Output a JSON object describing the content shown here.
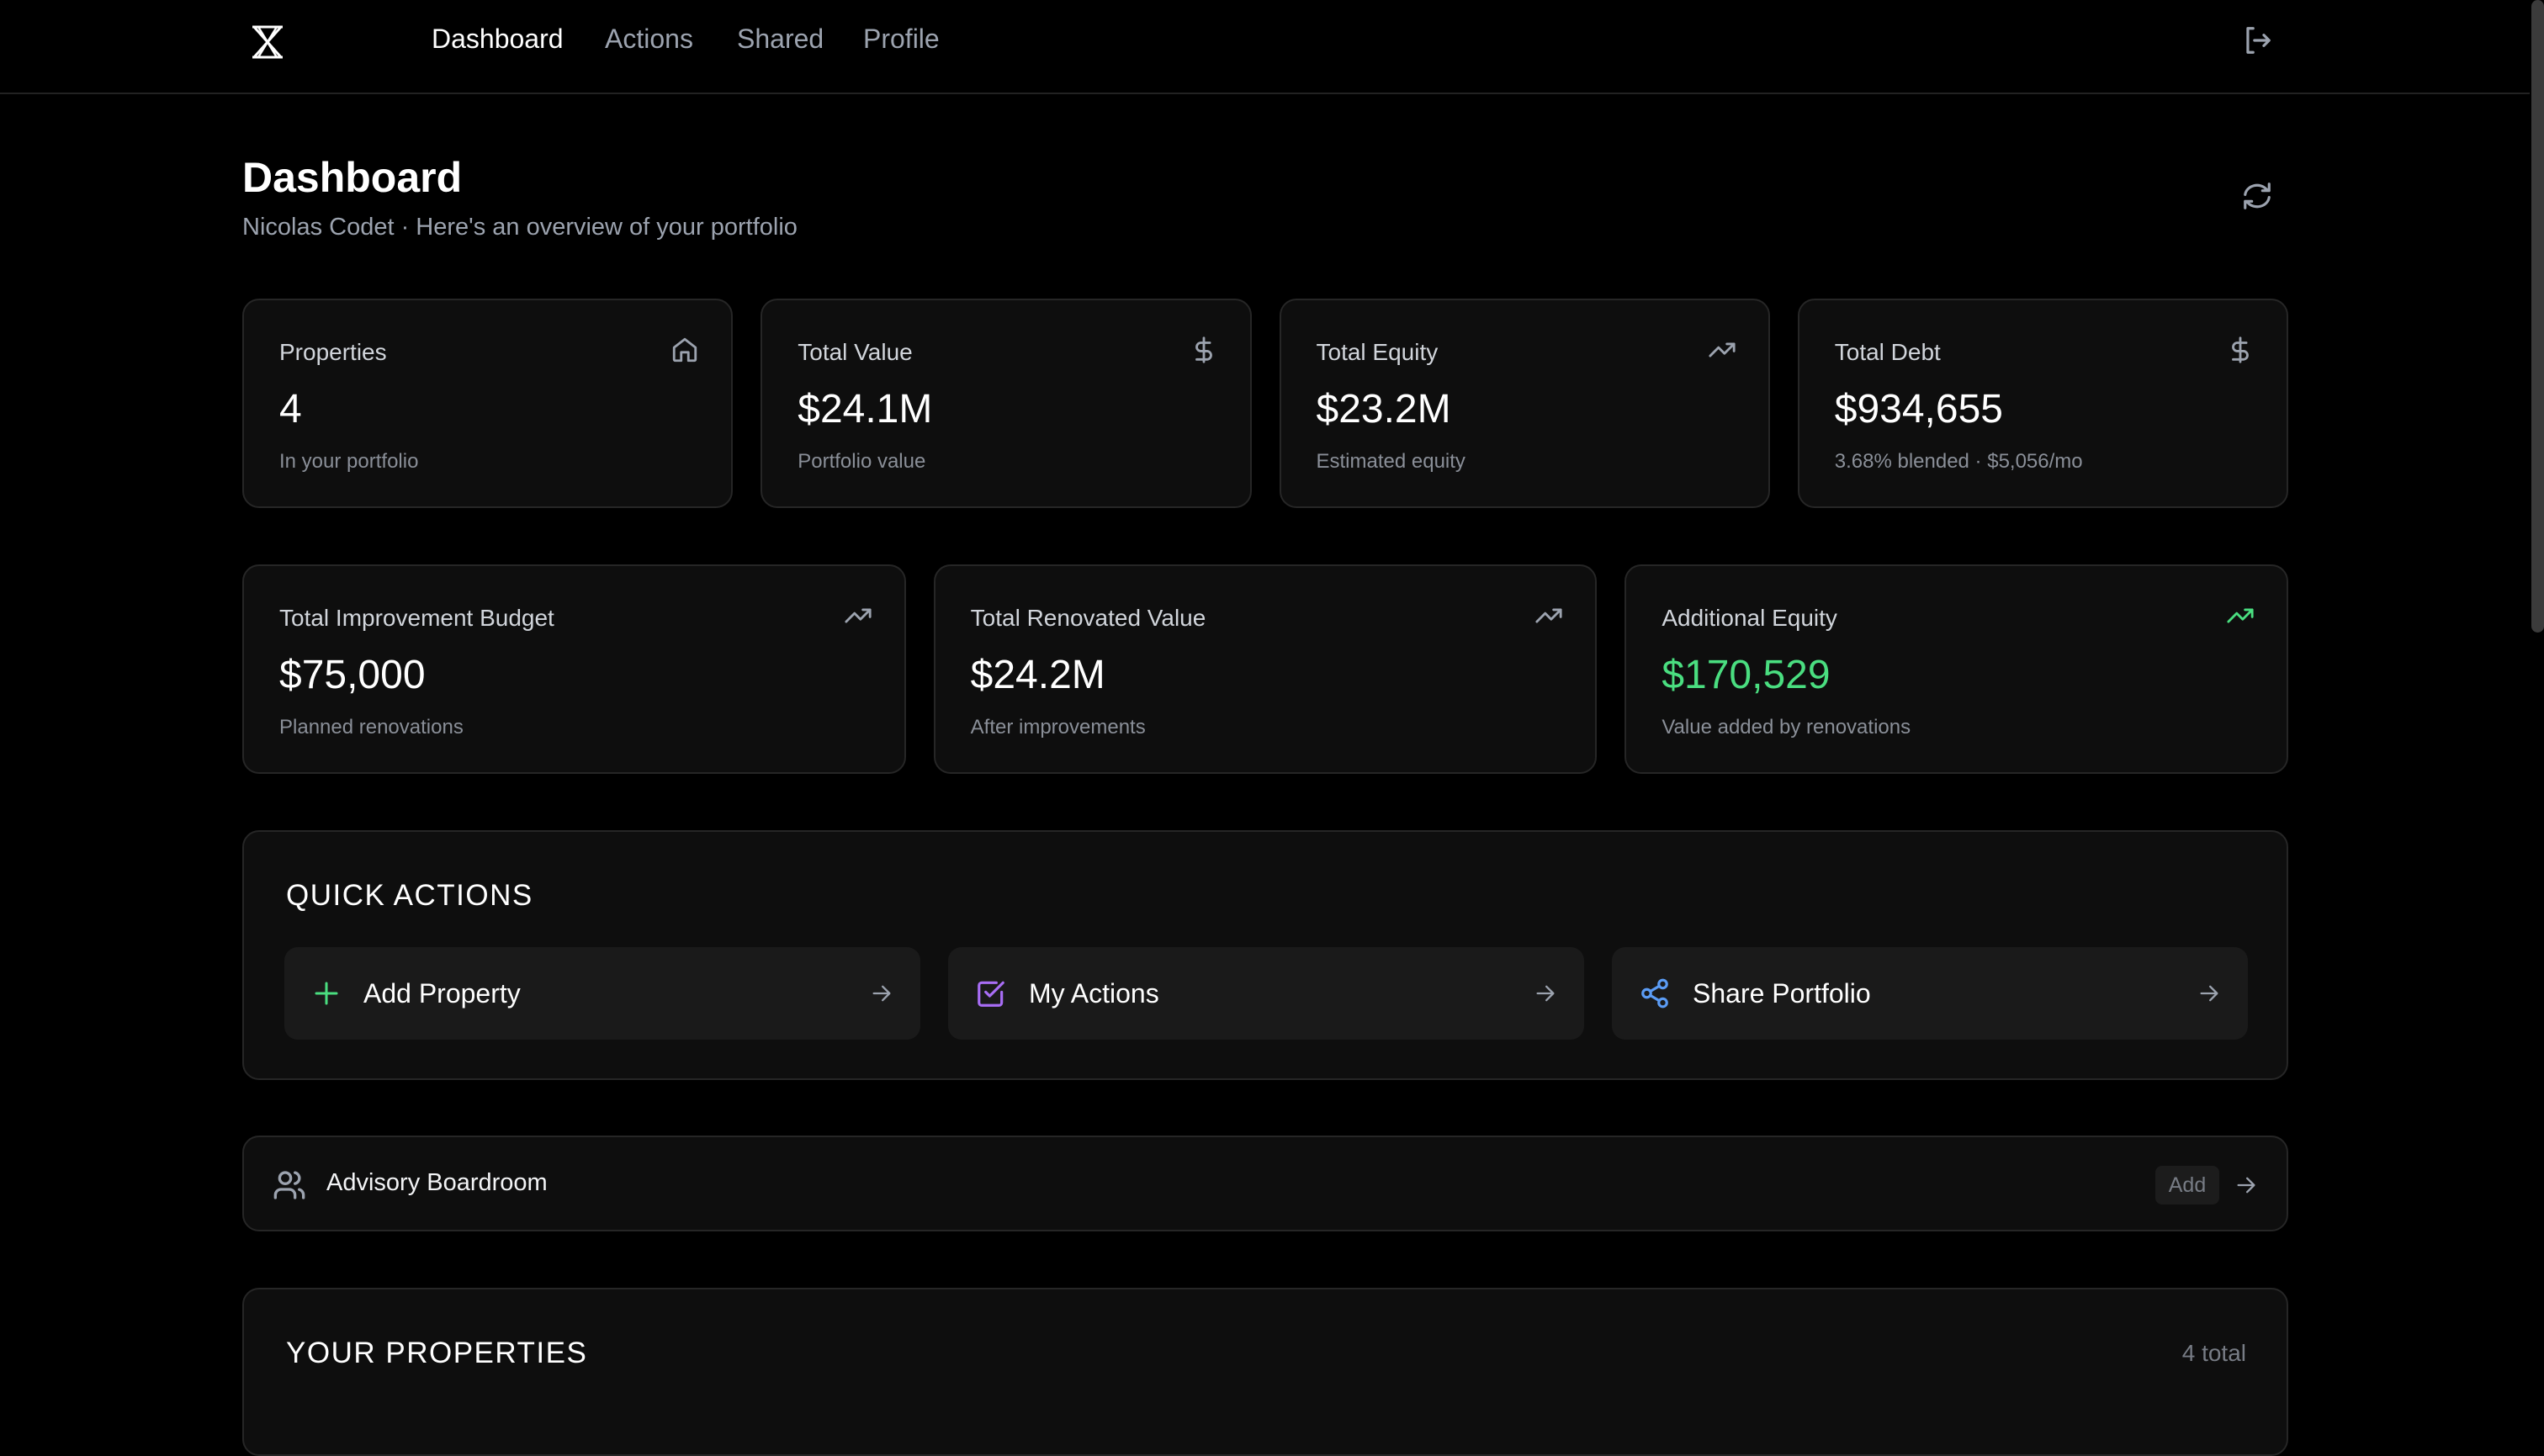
{
  "nav": {
    "items": [
      {
        "label": "Dashboard",
        "active": true
      },
      {
        "label": "Actions"
      },
      {
        "label": "Shared"
      },
      {
        "label": "Profile"
      }
    ],
    "logout_icon": "logout-icon"
  },
  "header": {
    "title": "Dashboard",
    "subtitle": "Nicolas Codet · Here's an overview of your portfolio",
    "refresh_icon": "refresh-icon"
  },
  "stats": [
    {
      "label": "Properties",
      "value": "4",
      "sub": "In your portfolio",
      "icon": "home-icon"
    },
    {
      "label": "Total Value",
      "value": "$24.1M",
      "sub": "Portfolio value",
      "icon": "dollar-icon"
    },
    {
      "label": "Total Equity",
      "value": "$23.2M",
      "sub": "Estimated equity",
      "icon": "trending-up-icon"
    },
    {
      "label": "Total Debt",
      "value": "$934,655",
      "sub": "3.68% blended · $5,056/mo",
      "icon": "dollar-icon"
    }
  ],
  "stats2": [
    {
      "label": "Total Improvement Budget",
      "value": "$75,000",
      "sub": "Planned renovations",
      "icon": "trending-up-icon"
    },
    {
      "label": "Total Renovated Value",
      "value": "$24.2M",
      "sub": "After improvements",
      "icon": "trending-up-icon"
    },
    {
      "label": "Additional Equity",
      "value": "$170,529",
      "sub": "Value added by renovations",
      "icon": "trending-up-icon",
      "accent": "#4ade80"
    }
  ],
  "quick_actions": {
    "title": "QUICK ACTIONS",
    "items": [
      {
        "label": "Add Property",
        "icon": "plus-icon",
        "color": "#4ade80"
      },
      {
        "label": "My Actions",
        "icon": "checkbox-icon",
        "color": "#a86df5"
      },
      {
        "label": "Share Portfolio",
        "icon": "share-icon",
        "color": "#5b9cf5"
      }
    ]
  },
  "advisory": {
    "label": "Advisory Boardroom",
    "add_label": "Add",
    "icon": "users-icon"
  },
  "properties": {
    "title": "YOUR PROPERTIES",
    "count": "4 total"
  },
  "colors": {
    "background": "#000000",
    "card": "#0e0e0e",
    "green": "#4ade80",
    "purple": "#a86df5",
    "blue": "#5b9cf5"
  }
}
